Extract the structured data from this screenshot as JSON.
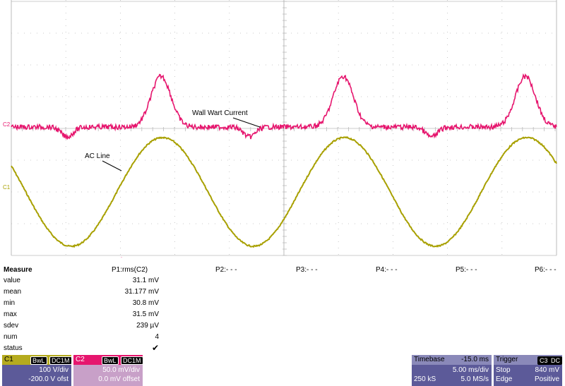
{
  "screen": {
    "annotations": {
      "wall_wart": "Wall Wart Current",
      "ac_line": "AC Line"
    },
    "channel_markers": {
      "c1": "C1",
      "c2": "C2"
    },
    "colors": {
      "c1_trace": "#a8a000",
      "c2_trace": "#e6166e",
      "grid": "#bbbbbb"
    }
  },
  "measure": {
    "title": "Measure",
    "params": [
      "P1:rms(C2)",
      "P2:- - -",
      "P3:- - -",
      "P4:- - -",
      "P5:- - -",
      "P6:- - -"
    ],
    "rows": [
      {
        "label": "value",
        "value": "31.1 mV"
      },
      {
        "label": "mean",
        "value": "31.177 mV"
      },
      {
        "label": "min",
        "value": "30.8 mV"
      },
      {
        "label": "max",
        "value": "31.5 mV"
      },
      {
        "label": "sdev",
        "value": "239 µV"
      },
      {
        "label": "num",
        "value": "4"
      },
      {
        "label": "status",
        "value": "✔"
      }
    ]
  },
  "c1": {
    "name": "C1",
    "bwl": "BwL",
    "coupling": "DC1M",
    "scale": "100 V/div",
    "offset": "-200.0 V ofst"
  },
  "c2": {
    "name": "C2",
    "bwl": "BwL",
    "coupling": "DC1M",
    "scale": "50.0 mV/div",
    "offset": "0.0 mV offset"
  },
  "timebase": {
    "label": "Timebase",
    "delay": "-15.0 ms",
    "scale": "5.00 ms/div",
    "samples": "250 kS",
    "rate": "5.0 MS/s"
  },
  "trigger": {
    "label": "Trigger",
    "source": "C3",
    "coupling": "DC",
    "mode": "Stop",
    "level": "840 mV",
    "type": "Edge",
    "slope": "Positive"
  }
}
